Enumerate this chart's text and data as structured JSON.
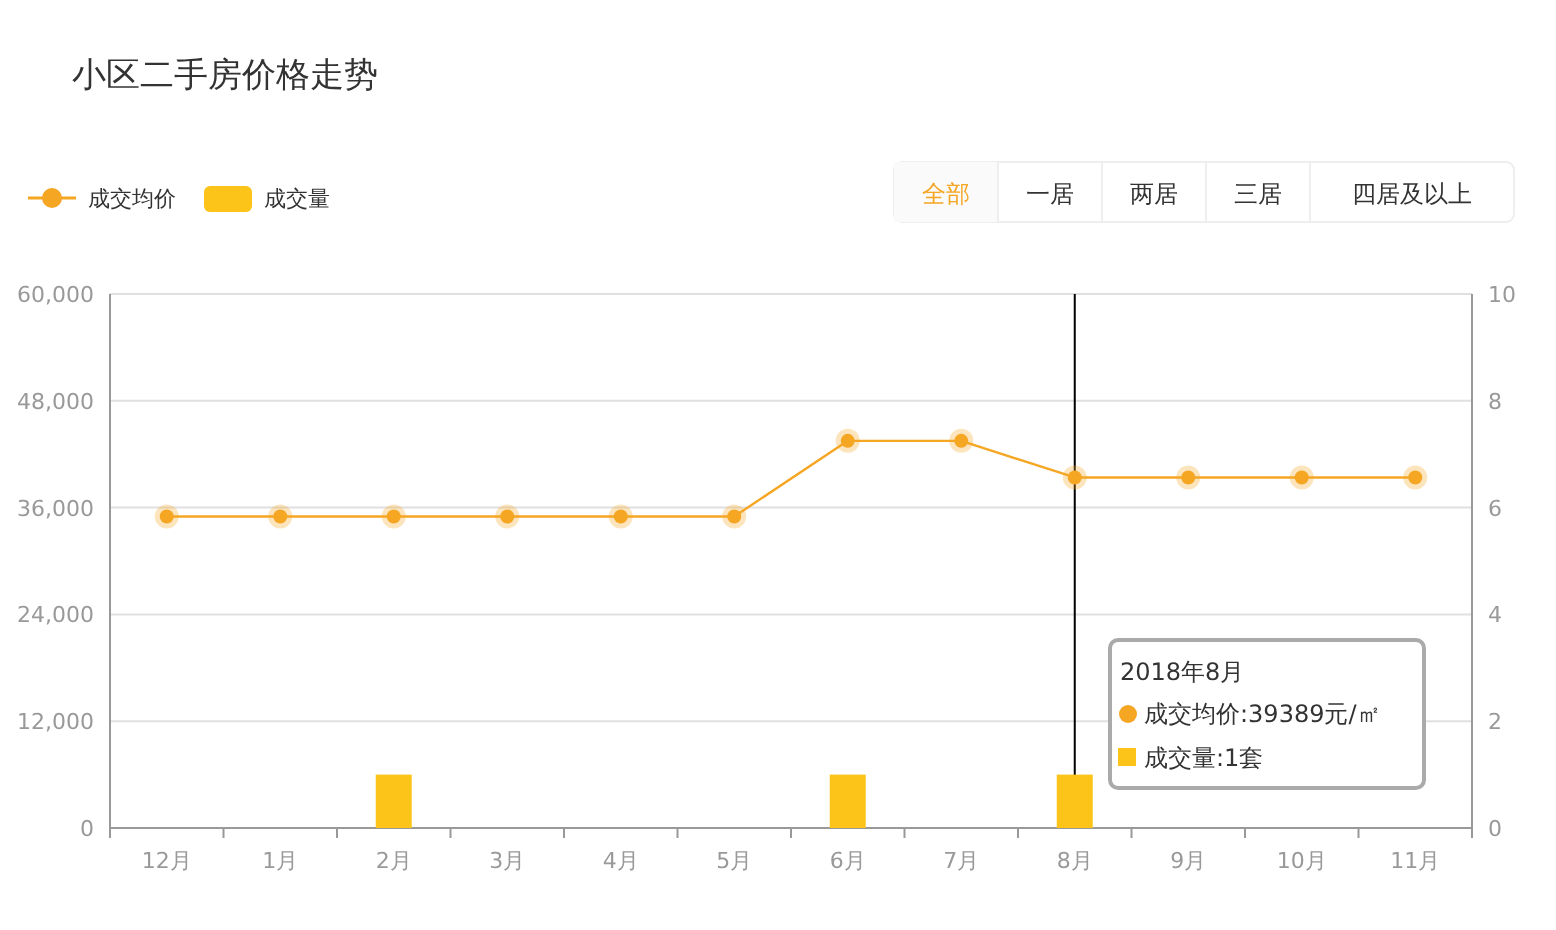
{
  "chart_data": {
    "type": "line",
    "title": "小区二手房价格走势",
    "categories": [
      "12月",
      "1月",
      "2月",
      "3月",
      "4月",
      "5月",
      "6月",
      "7月",
      "8月",
      "9月",
      "10月",
      "11月"
    ],
    "series": [
      {
        "name": "成交均价",
        "color": "#f5a623",
        "values": [
          35000,
          35000,
          35000,
          35000,
          35000,
          35000,
          43500,
          43500,
          39389,
          39389,
          39389,
          39389
        ]
      },
      {
        "name": "成交量",
        "type": "bar",
        "axis": "y2",
        "color": "#fcc419",
        "values": [
          0,
          0,
          1,
          0,
          0,
          0,
          1,
          0,
          1,
          0,
          0,
          0
        ]
      }
    ],
    "ylim": [
      0,
      60000
    ],
    "yticks": [
      {
        "value": 0,
        "label": "0"
      },
      {
        "value": 12000,
        "label": "12,000"
      },
      {
        "value": 24000,
        "label": "24,000"
      },
      {
        "value": 36000,
        "label": "36,000"
      },
      {
        "value": 48000,
        "label": "48,000"
      },
      {
        "value": 60000,
        "label": "60,000"
      }
    ],
    "y2lim": [
      0,
      10
    ],
    "y2ticks": [
      0,
      2,
      4,
      6,
      8,
      10
    ],
    "grid": "y",
    "legend": "top left",
    "marker": "circle",
    "ref_lines": [
      {
        "axis": "x",
        "value": "8月",
        "color": "#000000"
      }
    ],
    "annotations": [
      "全部",
      "一居",
      "两居",
      "三居",
      "四居及以上",
      "2018年8月",
      "成交均价:39389元/㎡",
      "成交量:1套"
    ]
  }
}
